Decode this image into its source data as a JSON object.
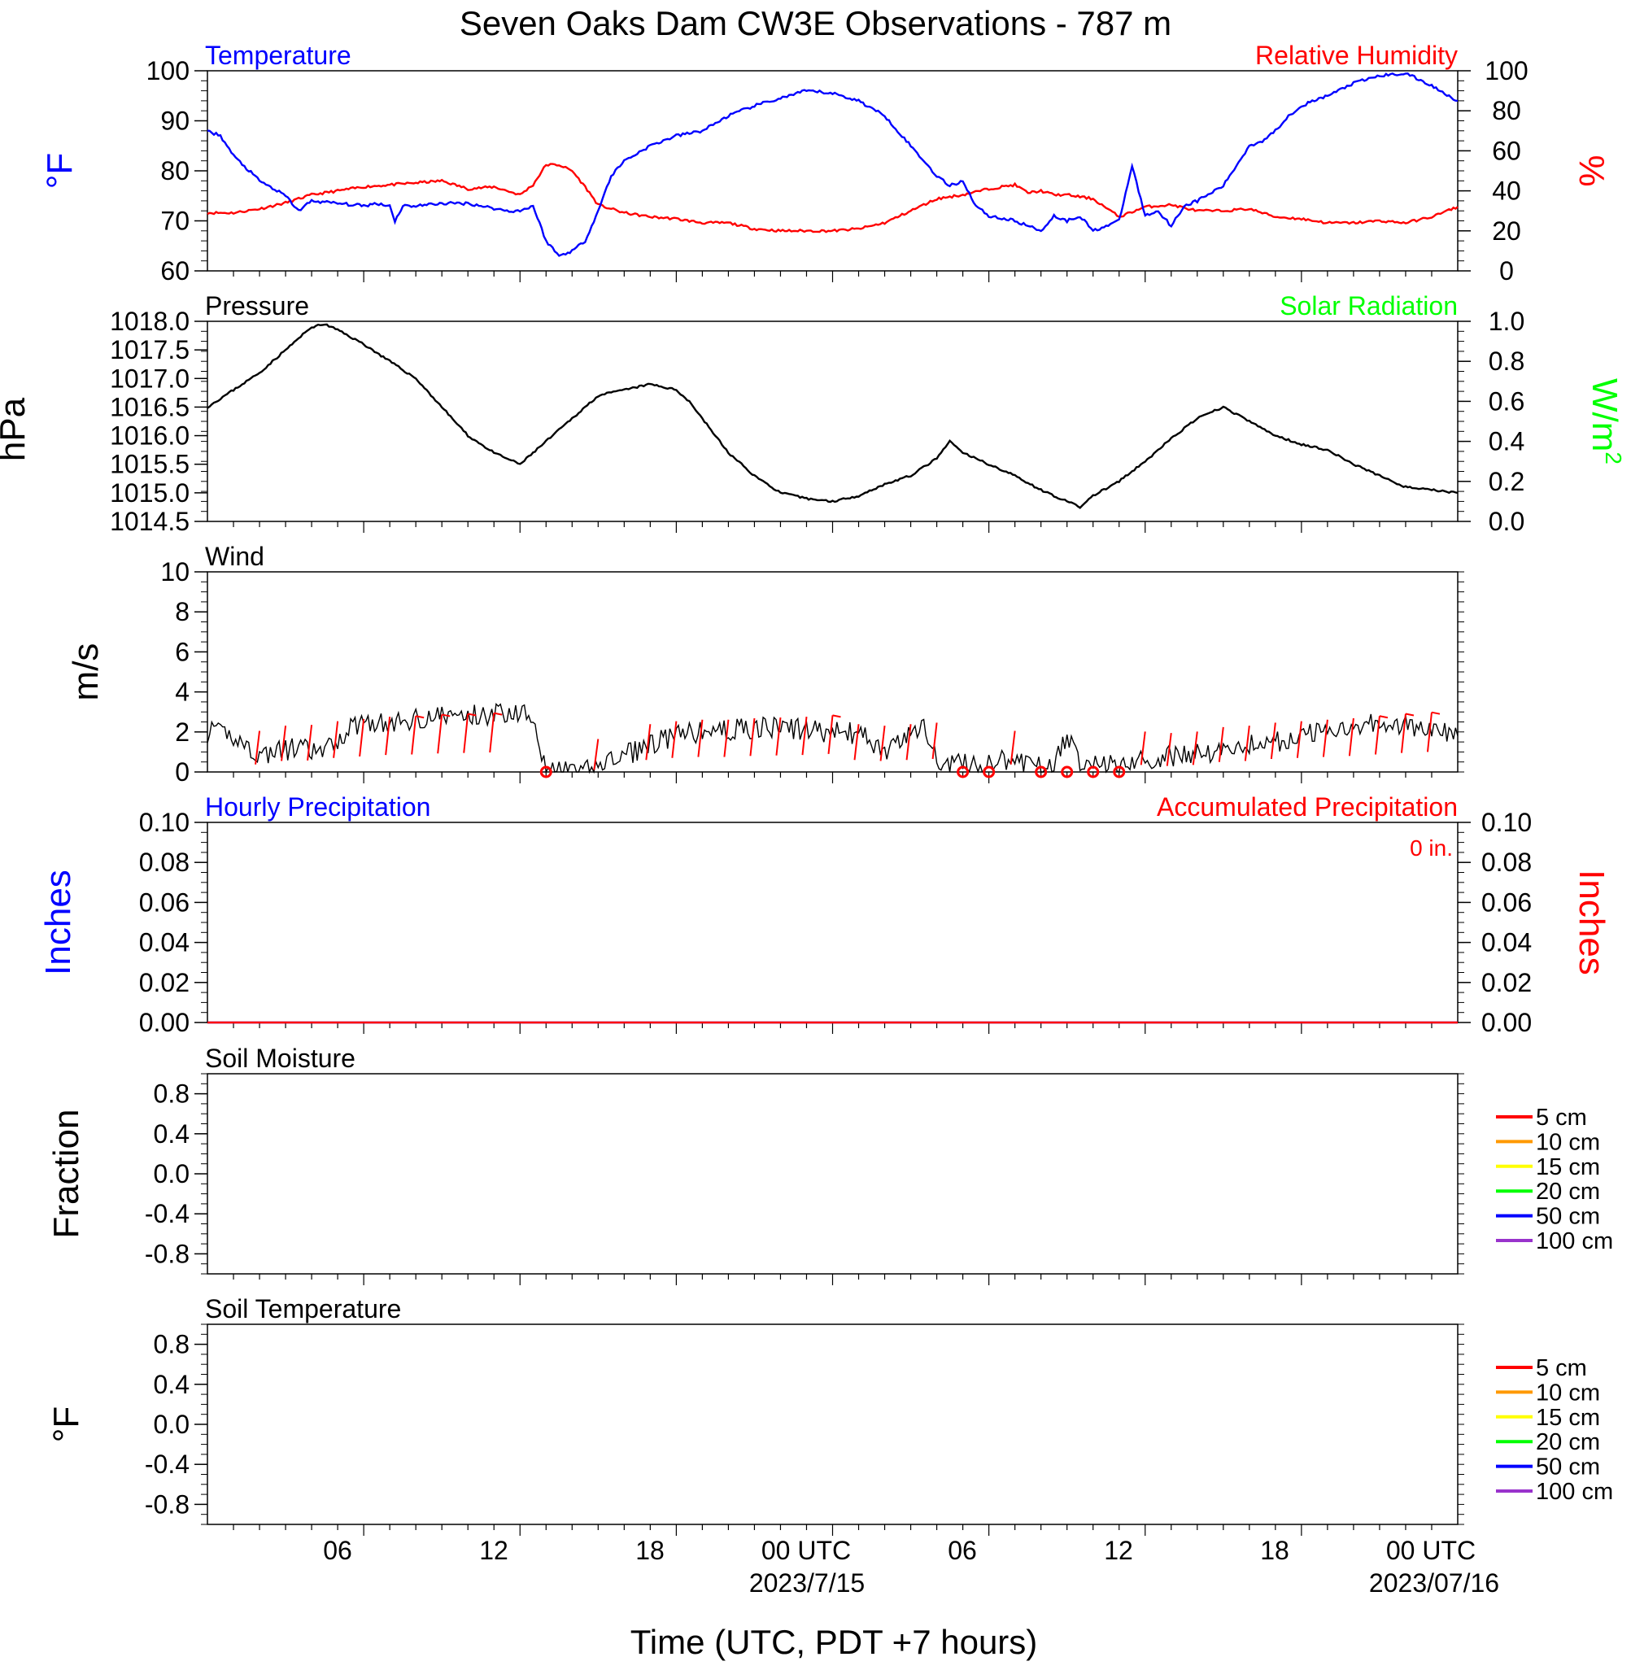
{
  "title": "Seven Oaks Dam CW3E Observations - 787 m",
  "xaxis": {
    "label": "Time (UTC, PDT +7 hours)",
    "ticks": [
      "06",
      "12",
      "18",
      "00 UTC",
      "06",
      "12",
      "18",
      "00 UTC"
    ],
    "dates": [
      "2023/7/15",
      "2023/07/16"
    ]
  },
  "colors": {
    "temperature": "#0000ff",
    "humidity": "#ff0000",
    "pressure": "#000000",
    "solar": "#00ff00",
    "wind": "#000000",
    "barb": "#ff0000",
    "soil": [
      "#ff0000",
      "#ff9900",
      "#ffff00",
      "#00ff00",
      "#0000ff",
      "#9933cc"
    ]
  },
  "chart_data": [
    {
      "type": "line",
      "panel_title": "Temperature",
      "right_title": "Relative Humidity",
      "left_unit": "°F",
      "right_unit": "%",
      "left_ticks": [
        "100",
        "90",
        "80",
        "70",
        "60"
      ],
      "right_ticks": [
        "100",
        "80",
        "60",
        "40",
        "20",
        "0"
      ],
      "ylim": [
        60,
        100
      ],
      "y2lim": [
        0,
        100
      ],
      "xlim": [
        0,
        48
      ],
      "series": [
        {
          "name": "Temperature",
          "x": [
            0,
            0.5,
            1,
            2,
            3,
            3.5,
            4,
            5,
            6,
            6.5,
            7,
            7.2,
            7.5,
            8,
            9,
            10,
            11,
            11.5,
            12,
            12.5,
            13,
            13.5,
            14,
            14.5,
            15,
            15.5,
            16,
            17,
            18,
            19,
            20,
            21,
            22,
            23,
            24,
            25,
            26,
            27,
            28,
            28.5,
            29,
            29.5,
            30,
            31,
            32,
            32.5,
            33,
            33.5,
            34,
            34.5,
            35,
            35.5,
            36,
            36.5,
            37,
            37.5,
            38,
            39,
            40,
            40.5,
            41,
            41.5,
            42,
            43,
            44,
            45,
            46,
            47,
            48
          ],
          "y": [
            88,
            87,
            83,
            78,
            75,
            72,
            74,
            73.5,
            73,
            73.5,
            73,
            70,
            73,
            73,
            73.5,
            73.5,
            72.5,
            72,
            72,
            73,
            66,
            63,
            64,
            66,
            72,
            79,
            82,
            85,
            87,
            88,
            91,
            93,
            94.5,
            96,
            95.5,
            94,
            91,
            85,
            79,
            77,
            78,
            73,
            71,
            70,
            68,
            71,
            70,
            71,
            68,
            69,
            70,
            81,
            71,
            72,
            69,
            73,
            74,
            77,
            85,
            86,
            88,
            91,
            93,
            95,
            97.5,
            99,
            99.5,
            97,
            94
          ]
        },
        {
          "name": "Relative Humidity",
          "x": [
            0,
            1,
            2,
            3,
            4,
            5,
            6,
            7,
            8,
            9,
            10,
            11,
            12,
            12.5,
            13,
            13.5,
            14,
            14.5,
            15,
            16,
            17,
            18,
            19,
            20,
            21,
            22,
            23,
            24,
            25,
            26,
            27,
            28,
            29,
            30,
            31,
            31.5,
            32,
            32.5,
            33,
            33.5,
            34,
            35,
            36,
            37,
            38,
            39,
            40,
            41,
            42,
            43,
            44,
            45,
            46,
            47,
            48
          ],
          "y": [
            29,
            29,
            31,
            34,
            38,
            40,
            42,
            43,
            44,
            45,
            41,
            42,
            38,
            43,
            53,
            53,
            50,
            42,
            33,
            29,
            27,
            26,
            24,
            24,
            21,
            20,
            20,
            20,
            21,
            24,
            30,
            36,
            38,
            41,
            43,
            39,
            40,
            38,
            38,
            37,
            36,
            27,
            32,
            33,
            30,
            30,
            31,
            27,
            26,
            24,
            24,
            25,
            24,
            27,
            32
          ]
        }
      ]
    },
    {
      "type": "line",
      "panel_title": "Pressure",
      "right_title": "Solar Radiation",
      "left_unit": "hPa",
      "right_unit": "W/m",
      "right_unit_sup": "2",
      "left_ticks": [
        "1018.0",
        "1017.5",
        "1017.0",
        "1016.5",
        "1016.0",
        "1015.5",
        "1015.0",
        "1014.5"
      ],
      "right_ticks": [
        "1.0",
        "0.8",
        "0.6",
        "0.4",
        "0.2",
        "0.0"
      ],
      "ylim": [
        1014.5,
        1018.0
      ],
      "y2lim": [
        0,
        1
      ],
      "xlim": [
        0,
        48
      ],
      "series": [
        {
          "name": "Pressure",
          "x": [
            0,
            1,
            2,
            3,
            4,
            4.5,
            5,
            6,
            7,
            8,
            9,
            10,
            11,
            11.5,
            12,
            12.5,
            13,
            13.5,
            14,
            15,
            16,
            17,
            18,
            18.5,
            19,
            20,
            21,
            22,
            23,
            24,
            25,
            26,
            27,
            28,
            28.5,
            29,
            30,
            31,
            32,
            33,
            33.5,
            34,
            35,
            36,
            37,
            38,
            39,
            40,
            41,
            42,
            43,
            44,
            45,
            46,
            47,
            48
          ],
          "y": [
            1016.5,
            1016.8,
            1017.1,
            1017.5,
            1017.9,
            1017.95,
            1017.85,
            1017.6,
            1017.3,
            1017.0,
            1016.5,
            1016.0,
            1015.7,
            1015.6,
            1015.5,
            1015.7,
            1015.9,
            1016.1,
            1016.3,
            1016.7,
            1016.8,
            1016.9,
            1016.8,
            1016.6,
            1016.3,
            1015.7,
            1015.3,
            1015.0,
            1014.9,
            1014.85,
            1014.95,
            1015.15,
            1015.3,
            1015.6,
            1015.9,
            1015.7,
            1015.5,
            1015.3,
            1015.05,
            1014.85,
            1014.75,
            1014.95,
            1015.2,
            1015.55,
            1015.95,
            1016.3,
            1016.5,
            1016.25,
            1016.0,
            1015.85,
            1015.75,
            1015.5,
            1015.3,
            1015.1,
            1015.05,
            1015.0
          ]
        }
      ]
    },
    {
      "type": "line",
      "panel_title": "Wind",
      "left_unit": "m/s",
      "left_ticks": [
        "10",
        "8",
        "6",
        "4",
        "2",
        "0"
      ],
      "ylim": [
        0,
        10
      ],
      "xlim": [
        0,
        48
      ],
      "series": [
        {
          "name": "Wind",
          "x": [
            0,
            1,
            1.5,
            2,
            2.5,
            3,
            3.5,
            4,
            4.5,
            5,
            5.5,
            6,
            6.5,
            7,
            7.5,
            8,
            9,
            10,
            11,
            11.5,
            12,
            12.5,
            13,
            13.5,
            14,
            14.5,
            15,
            16,
            17,
            18,
            19,
            20,
            21,
            22,
            23,
            24,
            25,
            25.5,
            26,
            27,
            27.5,
            28,
            28.5,
            29,
            29.5,
            30,
            30.5,
            31,
            32,
            32.5,
            33,
            33.5,
            34,
            34.5,
            35,
            36,
            37,
            38,
            39,
            40,
            41,
            42,
            43,
            44,
            45,
            46,
            47,
            48
          ],
          "y": [
            2,
            1.8,
            1.3,
            0.8,
            1,
            1.1,
            1.2,
            1,
            1,
            1.6,
            2.2,
            2.6,
            2.5,
            2.3,
            2.5,
            2.7,
            2.8,
            2.8,
            2.9,
            3,
            3,
            3,
            0,
            0,
            0,
            0,
            0.4,
            0.8,
            1.4,
            1.8,
            2,
            2.1,
            2.2,
            2.2,
            2.1,
            2,
            1.9,
            1.5,
            1,
            1.8,
            2.5,
            0.5,
            0.4,
            0.5,
            0.4,
            0.3,
            0.6,
            0.4,
            0.3,
            0.5,
            1.6,
            0.6,
            0.6,
            0.4,
            0.4,
            0.6,
            0.8,
            0.9,
            1.1,
            1.4,
            1.5,
            1.8,
            2.1,
            2.4,
            2.5,
            2.3,
            2,
            1.8
          ]
        },
        {
          "name": "Wind barbs",
          "x": [
            2,
            3,
            4,
            5,
            6,
            7,
            8,
            9,
            10,
            11,
            13,
            15,
            17,
            18,
            19,
            20,
            21,
            22,
            23,
            24,
            25,
            26,
            27,
            28,
            29,
            30,
            31,
            32,
            33,
            34,
            35,
            36,
            37,
            38,
            39,
            40,
            41,
            42,
            43,
            44,
            45,
            46,
            47
          ],
          "y": [
            1.5,
            2.2,
            2.3,
            2.8,
            3.1,
            3.4,
            3.5,
            3.7,
            3.8,
            3.9,
            0,
            0.4,
            2.4,
            2.8,
            3.0,
            3.0,
            3.2,
            3.3,
            3.4,
            3.6,
            2.4,
            2.2,
            2.4,
            2.6,
            0,
            0,
            1.5,
            0,
            0,
            0,
            0,
            1.4,
            1.2,
            1.4,
            2.0,
            2.2,
            2.6,
            2.8,
            3.0,
            3.2,
            3.5,
            3.8,
            4.0
          ]
        }
      ]
    },
    {
      "type": "line",
      "panel_title": "Hourly Precipitation",
      "right_title": "Accumulated Precipitation",
      "annotation": "0 in.",
      "left_unit": "Inches",
      "right_unit": "Inches",
      "left_ticks": [
        "0.10",
        "0.08",
        "0.06",
        "0.04",
        "0.02",
        "0.00"
      ],
      "right_ticks": [
        "0.10",
        "0.08",
        "0.06",
        "0.04",
        "0.02",
        "0.00"
      ],
      "ylim": [
        0,
        0.1
      ],
      "y2lim": [
        0,
        0.1
      ],
      "xlim": [
        0,
        48
      ],
      "series": [
        {
          "name": "Hourly Precipitation",
          "x": [
            0,
            48
          ],
          "y": [
            0,
            0
          ]
        },
        {
          "name": "Accumulated Precipitation",
          "x": [
            0,
            48
          ],
          "y": [
            0,
            0
          ]
        }
      ]
    },
    {
      "type": "line",
      "panel_title": "Soil Moisture",
      "left_unit": "Fraction",
      "left_ticks": [
        "0.8",
        "0.4",
        "0.0",
        "-0.4",
        "-0.8"
      ],
      "ylim": [
        -1,
        1
      ],
      "legend": [
        "5 cm",
        "10 cm",
        "15 cm",
        "20 cm",
        "50 cm",
        "100 cm"
      ],
      "series": []
    },
    {
      "type": "line",
      "panel_title": "Soil Temperature",
      "left_unit": "°F",
      "left_ticks": [
        "0.8",
        "0.4",
        "0.0",
        "-0.4",
        "-0.8"
      ],
      "ylim": [
        -1,
        1
      ],
      "legend": [
        "5 cm",
        "10 cm",
        "15 cm",
        "20 cm",
        "50 cm",
        "100 cm"
      ],
      "series": []
    }
  ]
}
